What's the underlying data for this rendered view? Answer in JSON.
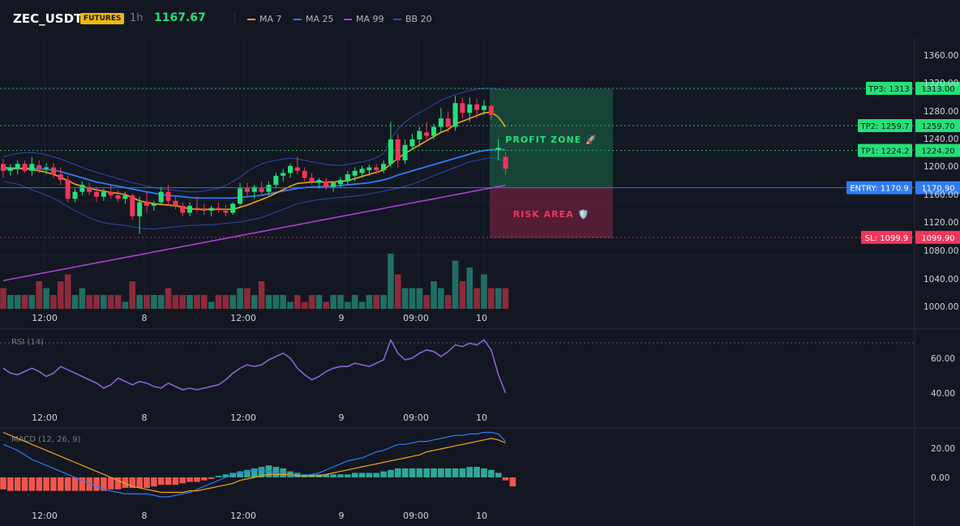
{
  "header": {
    "symbol": "ZEC_USDT",
    "badge": "FUTURES",
    "timeframe": "1h",
    "price": "1167.67"
  },
  "legend": [
    {
      "label": "MA 7",
      "color": "#f7a21b"
    },
    {
      "label": "MA 25",
      "color": "#2f7cf6"
    },
    {
      "label": "MA 99",
      "color": "#b03fd6"
    },
    {
      "label": "BB 20",
      "color": "#2b4ba8"
    }
  ],
  "colors": {
    "up": "#26e078",
    "down": "#f2365a",
    "vol_up": "#1f6e64",
    "vol_down": "#8e2a3a"
  },
  "main_axis": {
    "ticks": [
      "1360.00",
      "1320.00",
      "1280.00",
      "1240.00",
      "1200.00",
      "1160.00",
      "1120.00",
      "1080.00",
      "1040.00",
      "1000.00"
    ]
  },
  "time_axis": [
    "12:00",
    "8",
    "12:00",
    "9",
    "09:00",
    "10"
  ],
  "levels": [
    {
      "key": "tp3",
      "tag": "TP3: 1313",
      "price": "1313.00",
      "color": "#26e078"
    },
    {
      "key": "tp2",
      "tag": "TP2: 1259.7",
      "price": "1259.70",
      "color": "#26e078"
    },
    {
      "key": "tp1",
      "tag": "TP1: 1224.2",
      "price": "1224.20",
      "color": "#26e078"
    },
    {
      "key": "entry",
      "tag": "ENTRY: 1170.9",
      "price": "1170.90",
      "color": "#2f7cf6"
    },
    {
      "key": "sl",
      "tag": "SL: 1099.9",
      "price": "1099.90",
      "color": "#f2365a"
    }
  ],
  "zones": {
    "profit": "PROFIT ZONE 🚀",
    "risk": "RISK AREA 🛡️"
  },
  "rsi": {
    "label": "RSI (14)",
    "ticks": [
      "60.00",
      "40.00"
    ]
  },
  "macd": {
    "label": "MACD (12, 26, 9)",
    "ticks": [
      "20.00",
      "0.00"
    ]
  }
}
